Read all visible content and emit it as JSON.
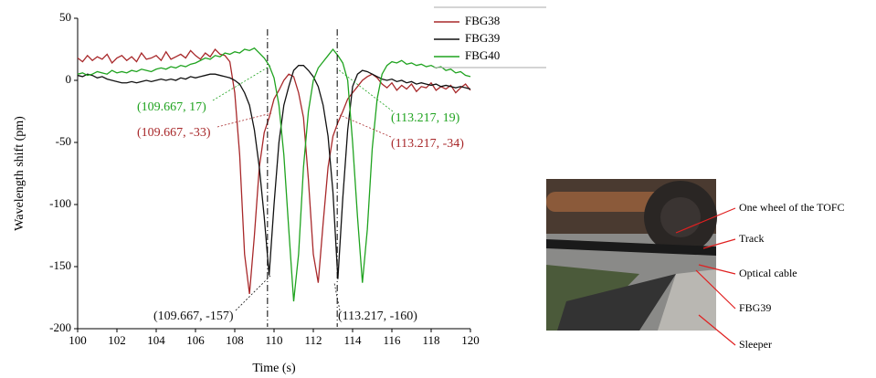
{
  "chart_data": {
    "type": "line",
    "xlabel": "Time (s)",
    "ylabel": "Wavelength shift (pm)",
    "xlim": [
      100,
      120
    ],
    "xticks": [
      100,
      102,
      104,
      106,
      108,
      110,
      112,
      114,
      116,
      118,
      120
    ],
    "ylim": [
      -200,
      50
    ],
    "yticks": [
      50,
      0,
      -50,
      -100,
      -150,
      -200
    ],
    "legend": "upper right",
    "vlines": [
      109.667,
      113.217
    ],
    "x": [
      100,
      100.25,
      100.5,
      100.75,
      101,
      101.25,
      101.5,
      101.75,
      102,
      102.25,
      102.5,
      102.75,
      103,
      103.25,
      103.5,
      103.75,
      104,
      104.25,
      104.5,
      104.75,
      105,
      105.25,
      105.5,
      105.75,
      106,
      106.25,
      106.5,
      106.75,
      107,
      107.25,
      107.5,
      107.75,
      108,
      108.25,
      108.5,
      108.75,
      109,
      109.25,
      109.5,
      109.75,
      110,
      110.25,
      110.5,
      110.75,
      111,
      111.25,
      111.5,
      111.75,
      112,
      112.25,
      112.5,
      112.75,
      113,
      113.25,
      113.5,
      113.75,
      114,
      114.25,
      114.5,
      114.75,
      115,
      115.25,
      115.5,
      115.75,
      116,
      116.25,
      116.5,
      116.75,
      117,
      117.25,
      117.5,
      117.75,
      118,
      118.25,
      118.5,
      118.75,
      119,
      119.25,
      119.5,
      119.75,
      120
    ],
    "series": [
      {
        "name": "FBG38",
        "color": "#a8282a",
        "values": [
          18,
          15,
          20,
          16,
          19,
          17,
          21,
          14,
          18,
          20,
          16,
          19,
          15,
          22,
          17,
          18,
          20,
          16,
          23,
          17,
          19,
          21,
          18,
          24,
          20,
          17,
          22,
          19,
          25,
          21,
          20,
          15,
          -10,
          -60,
          -140,
          -172,
          -125,
          -70,
          -42,
          -30,
          -15,
          -8,
          0,
          5,
          3,
          -10,
          -30,
          -80,
          -140,
          -163,
          -115,
          -70,
          -45,
          -34,
          -25,
          -15,
          -10,
          -5,
          0,
          3,
          5,
          2,
          -3,
          -6,
          -2,
          -8,
          -4,
          -7,
          -3,
          -9,
          -5,
          -6,
          -2,
          -8,
          -5,
          -7,
          -4,
          -10,
          -6,
          -3,
          -8
        ]
      },
      {
        "name": "FBG39",
        "color": "#111111",
        "values": [
          4,
          3,
          5,
          4,
          2,
          3,
          1,
          0,
          -1,
          -2,
          -2,
          -1,
          -2,
          -1,
          0,
          -1,
          0,
          1,
          0,
          1,
          0,
          2,
          1,
          3,
          2,
          3,
          4,
          5,
          5,
          4,
          3,
          2,
          0,
          -3,
          -10,
          -20,
          -40,
          -70,
          -110,
          -157,
          -100,
          -50,
          -20,
          -5,
          8,
          12,
          12,
          8,
          3,
          -5,
          -20,
          -45,
          -90,
          -160,
          -95,
          -40,
          -5,
          5,
          8,
          7,
          5,
          3,
          1,
          0,
          1,
          -1,
          0,
          -2,
          -1,
          -3,
          -2,
          -3,
          -4,
          -3,
          -5,
          -4,
          -5,
          -6,
          -5,
          -6,
          -7
        ]
      },
      {
        "name": "FBG40",
        "color": "#1fa31f",
        "values": [
          5,
          6,
          4,
          5,
          7,
          6,
          5,
          8,
          6,
          7,
          6,
          8,
          7,
          9,
          8,
          7,
          9,
          10,
          9,
          11,
          10,
          12,
          11,
          13,
          14,
          16,
          18,
          17,
          20,
          19,
          22,
          21,
          23,
          22,
          25,
          24,
          26,
          22,
          18,
          12,
          2,
          -20,
          -60,
          -120,
          -178,
          -140,
          -70,
          -25,
          0,
          10,
          15,
          20,
          25,
          20,
          14,
          0,
          -50,
          -110,
          -163,
          -120,
          -55,
          -15,
          5,
          12,
          15,
          14,
          16,
          13,
          14,
          12,
          13,
          11,
          12,
          10,
          11,
          8,
          9,
          6,
          7,
          4,
          3
        ]
      }
    ],
    "annotations": [
      {
        "text": "(109.667, 17)",
        "color": "#1fa31f"
      },
      {
        "text": "(109.667, -33)",
        "color": "#a8282a"
      },
      {
        "text": "(109.667, -157)",
        "color": "#111111"
      },
      {
        "text": "(113.217, 19)",
        "color": "#1fa31f"
      },
      {
        "text": "(113.217, -34)",
        "color": "#a8282a"
      },
      {
        "text": "(113.217, -160)",
        "color": "#111111"
      }
    ]
  },
  "photo": {
    "labels": [
      "One wheel of the TOFC",
      "Track",
      "Optical cable",
      "FBG39",
      "Sleeper"
    ]
  }
}
